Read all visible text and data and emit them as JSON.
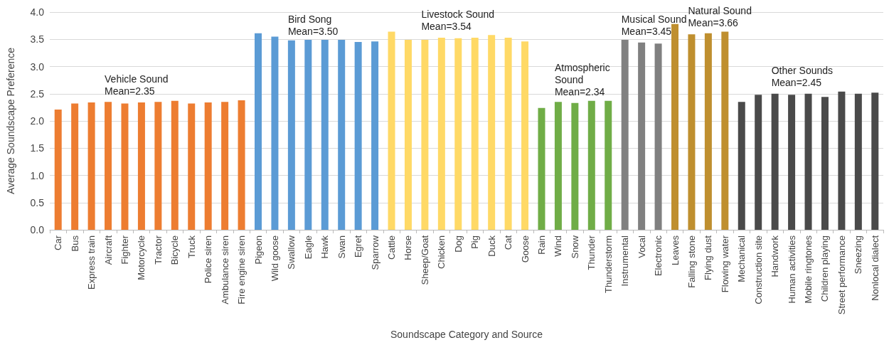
{
  "chart_data": {
    "type": "bar",
    "xlabel": "Soundscape Category and Source",
    "ylabel": "Average Soundscape Preference",
    "categories": [
      "Car",
      "Bus",
      "Express train",
      "Aircraft",
      "Fighter",
      "Motorcycle",
      "Tractor",
      "Bicycle",
      "Truck",
      "Police siren",
      "Ambulance siren",
      "Fire engine siren",
      "Pigeon",
      "Wild goose",
      "Swallow",
      "Eagle",
      "Hawk",
      "Swan",
      "Egret",
      "Sparrow",
      "Cattle",
      "Horse",
      "Sheep/Goat",
      "Chicken",
      "Dog",
      "Pig",
      "Duck",
      "Cat",
      "Goose",
      "Rain",
      "Wind",
      "Snow",
      "Thunder",
      "Thunderstorm",
      "Instrumental",
      "Vocal",
      "Electronic",
      "Leaves",
      "Falling stone",
      "Flying dust",
      "Flowing water",
      "Mechanical",
      "Construction site",
      "Handwork",
      "Human activities",
      "Mobile ringtones",
      "Children playing",
      "Street performance",
      "Sneezing",
      "Nonlocal dialect"
    ],
    "values": [
      2.21,
      2.32,
      2.34,
      2.35,
      2.32,
      2.34,
      2.35,
      2.37,
      2.32,
      2.34,
      2.35,
      2.38,
      3.61,
      3.55,
      3.48,
      3.49,
      3.49,
      3.49,
      3.45,
      3.46,
      3.64,
      3.49,
      3.49,
      3.53,
      3.52,
      3.53,
      3.58,
      3.53,
      3.46,
      2.24,
      2.35,
      2.33,
      2.37,
      2.37,
      3.49,
      3.44,
      3.42,
      3.78,
      3.59,
      3.61,
      3.64,
      2.35,
      2.48,
      2.5,
      2.48,
      2.5,
      2.44,
      2.54,
      2.5,
      2.52
    ],
    "colors": [
      "#ed7d31",
      "#ed7d31",
      "#ed7d31",
      "#ed7d31",
      "#ed7d31",
      "#ed7d31",
      "#ed7d31",
      "#ed7d31",
      "#ed7d31",
      "#ed7d31",
      "#ed7d31",
      "#ed7d31",
      "#5b9bd5",
      "#5b9bd5",
      "#5b9bd5",
      "#5b9bd5",
      "#5b9bd5",
      "#5b9bd5",
      "#5b9bd5",
      "#5b9bd5",
      "#ffd966",
      "#ffd966",
      "#ffd966",
      "#ffd966",
      "#ffd966",
      "#ffd966",
      "#ffd966",
      "#ffd966",
      "#ffd966",
      "#70ad47",
      "#70ad47",
      "#70ad47",
      "#70ad47",
      "#70ad47",
      "#808080",
      "#808080",
      "#808080",
      "#bf8f2f",
      "#bf8f2f",
      "#bf8f2f",
      "#bf8f2f",
      "#4a4a4a",
      "#4a4a4a",
      "#4a4a4a",
      "#4a4a4a",
      "#4a4a4a",
      "#4a4a4a",
      "#4a4a4a",
      "#4a4a4a",
      "#4a4a4a"
    ],
    "ylim": [
      0,
      4
    ],
    "yticks": [
      {
        "value": 0,
        "label": "0.0"
      },
      {
        "value": 0.5,
        "label": "0.5"
      },
      {
        "value": 1,
        "label": "1.0"
      },
      {
        "value": 1.5,
        "label": "1.5"
      },
      {
        "value": 2,
        "label": "2.0"
      },
      {
        "value": 2.5,
        "label": "2.5"
      },
      {
        "value": 3,
        "label": "3.0"
      },
      {
        "value": 3.5,
        "label": "3.5"
      },
      {
        "value": 4,
        "label": "4.0"
      }
    ],
    "grid": "y",
    "annotations": [
      "Vehicle Sound\nMean=2.35",
      "Bird Song\nMean=3.50",
      "Livestock Sound\nMean=3.54",
      "Atmospheric\nSound\nMean=2.34",
      "Musical Sound\nMean=3.45",
      "Natural Sound\nMean=3.66",
      "Other Sounds\nMean=2.45"
    ]
  }
}
